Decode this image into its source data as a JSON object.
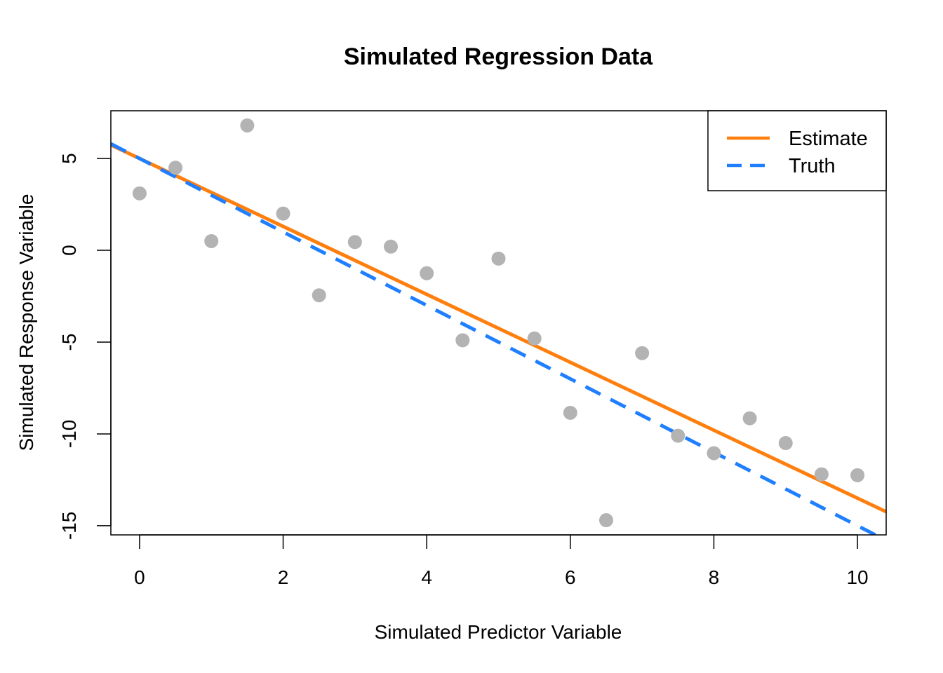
{
  "chart_data": {
    "type": "scatter",
    "title": "Simulated Regression Data",
    "xlabel": "Simulated Predictor Variable",
    "ylabel": "Simulated Response Variable",
    "xlim": [
      -0.4,
      10.4
    ],
    "ylim": [
      -15.5,
      7.6
    ],
    "x_ticks": [
      0,
      2,
      4,
      6,
      8,
      10
    ],
    "y_ticks": [
      -15,
      -10,
      -5,
      0,
      5
    ],
    "x_tick_labels": [
      "0",
      "2",
      "4",
      "6",
      "8",
      "10"
    ],
    "y_tick_labels": [
      "-15",
      "-10",
      "-5",
      "0",
      "5"
    ],
    "points": {
      "x": [
        0,
        0.5,
        1,
        1.5,
        2,
        2.5,
        3,
        3.5,
        4,
        4.5,
        5,
        5.5,
        6,
        6.5,
        7,
        7.5,
        8,
        8.5,
        9,
        9.5,
        10
      ],
      "y": [
        3.1,
        4.5,
        0.5,
        6.8,
        2.0,
        -2.45,
        0.45,
        0.2,
        -1.25,
        -4.9,
        -0.45,
        -4.8,
        -8.85,
        -14.7,
        -5.6,
        -10.1,
        -11.05,
        -9.15,
        -10.5,
        -12.2,
        -12.25
      ],
      "color": "#b3b3b3"
    },
    "lines": [
      {
        "name": "Estimate",
        "intercept": 5.0,
        "slope": -1.85,
        "color": "#ff7f0e",
        "dash": "solid"
      },
      {
        "name": "Truth",
        "intercept": 5.0,
        "slope": -2.0,
        "color": "#1f7fff",
        "dash": "dashed"
      }
    ],
    "legend": {
      "position": "top-right",
      "entries": [
        "Estimate",
        "Truth"
      ]
    },
    "grid": false
  }
}
